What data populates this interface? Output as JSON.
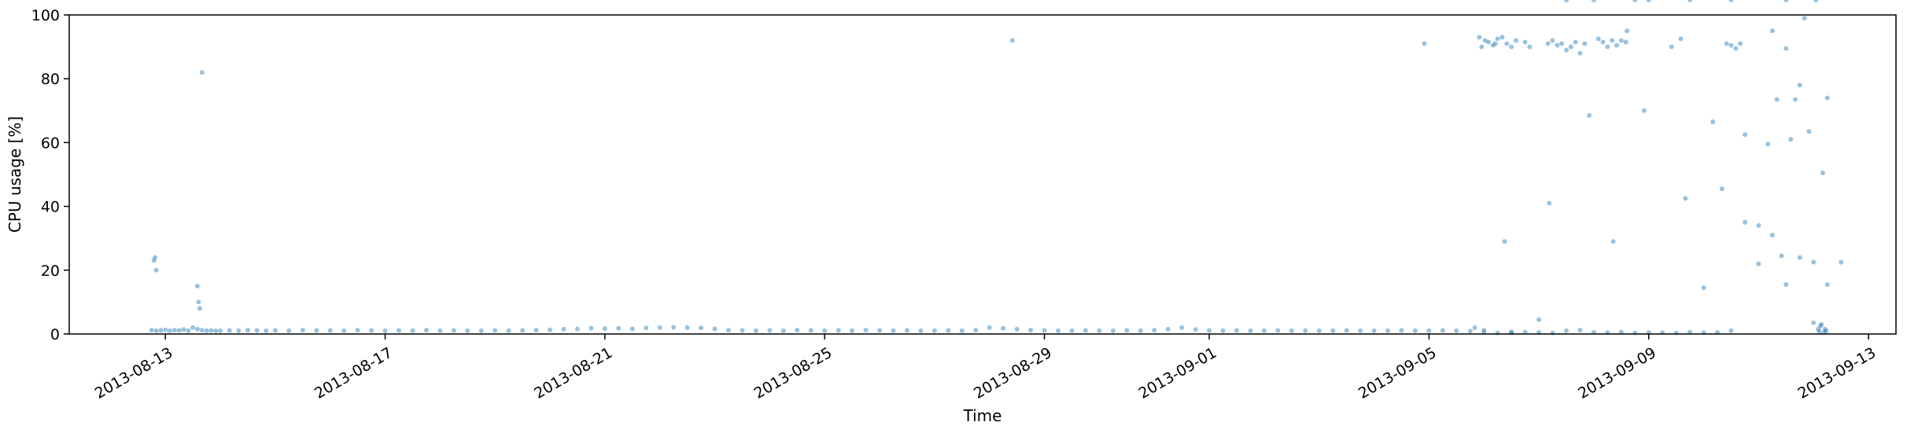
{
  "chart_data": {
    "type": "scatter",
    "xlabel": "Time",
    "ylabel": "CPU usage [%]",
    "ylim": [
      0,
      100
    ],
    "xlim": [
      "2013-08-11T06:00:00",
      "2013-09-13T12:00:00"
    ],
    "grid": false,
    "marker_color": "#1f77b4",
    "marker_alpha": 0.45,
    "x_ticks": [
      {
        "value": "2013-08-13",
        "label": "2013-08-13"
      },
      {
        "value": "2013-08-17",
        "label": "2013-08-17"
      },
      {
        "value": "2013-08-21",
        "label": "2013-08-21"
      },
      {
        "value": "2013-08-25",
        "label": "2013-08-25"
      },
      {
        "value": "2013-08-29",
        "label": "2013-08-29"
      },
      {
        "value": "2013-09-01",
        "label": "2013-09-01"
      },
      {
        "value": "2013-09-05",
        "label": "2013-09-05"
      },
      {
        "value": "2013-09-09",
        "label": "2013-09-09"
      },
      {
        "value": "2013-09-13",
        "label": "2013-09-13"
      }
    ],
    "y_ticks": [
      {
        "value": 0,
        "label": "0"
      },
      {
        "value": 20,
        "label": "20"
      },
      {
        "value": 40,
        "label": "40"
      },
      {
        "value": 60,
        "label": "60"
      },
      {
        "value": 80,
        "label": "80"
      },
      {
        "value": 100,
        "label": "100"
      }
    ],
    "series": [
      {
        "values_x": [
          "2013-08-12T18:00",
          "2013-08-12T20:00",
          "2013-08-12T22:00",
          "2013-08-13T00:00",
          "2013-08-13T02:00",
          "2013-08-13T04:00",
          "2013-08-13T06:00",
          "2013-08-13T08:00",
          "2013-08-13T10:00",
          "2013-08-13T12:00",
          "2013-08-13T14:00",
          "2013-08-13T16:00",
          "2013-08-13T18:00",
          "2013-08-13T20:00",
          "2013-08-13T22:00",
          "2013-08-14T00:00",
          "2013-08-14T04:00",
          "2013-08-14T08:00",
          "2013-08-14T12:00",
          "2013-08-14T16:00",
          "2013-08-14T20:00",
          "2013-08-15T00:00",
          "2013-08-15T06:00",
          "2013-08-15T12:00",
          "2013-08-15T18:00",
          "2013-08-16T00:00",
          "2013-08-16T06:00",
          "2013-08-16T12:00",
          "2013-08-16T18:00",
          "2013-08-17T00:00",
          "2013-08-17T06:00",
          "2013-08-17T12:00",
          "2013-08-17T18:00",
          "2013-08-18T00:00",
          "2013-08-18T06:00",
          "2013-08-18T12:00",
          "2013-08-18T18:00",
          "2013-08-19T00:00",
          "2013-08-19T06:00",
          "2013-08-19T12:00",
          "2013-08-19T18:00",
          "2013-08-20T00:00",
          "2013-08-20T06:00",
          "2013-08-20T12:00",
          "2013-08-20T18:00",
          "2013-08-21T00:00",
          "2013-08-21T06:00",
          "2013-08-21T12:00",
          "2013-08-21T18:00",
          "2013-08-22T00:00",
          "2013-08-22T06:00",
          "2013-08-22T12:00",
          "2013-08-22T18:00",
          "2013-08-23T00:00",
          "2013-08-23T06:00",
          "2013-08-23T12:00",
          "2013-08-23T18:00",
          "2013-08-24T00:00",
          "2013-08-24T06:00",
          "2013-08-24T12:00",
          "2013-08-24T18:00",
          "2013-08-25T00:00",
          "2013-08-25T06:00",
          "2013-08-25T12:00",
          "2013-08-25T18:00",
          "2013-08-26T00:00",
          "2013-08-26T06:00",
          "2013-08-26T12:00",
          "2013-08-26T18:00",
          "2013-08-27T00:00",
          "2013-08-27T06:00",
          "2013-08-27T12:00",
          "2013-08-27T18:00",
          "2013-08-28T00:00",
          "2013-08-28T06:00",
          "2013-08-28T12:00",
          "2013-08-28T18:00",
          "2013-08-29T00:00",
          "2013-08-29T06:00",
          "2013-08-29T12:00",
          "2013-08-29T18:00",
          "2013-08-30T00:00",
          "2013-08-30T06:00",
          "2013-08-30T12:00",
          "2013-08-30T18:00",
          "2013-08-31T00:00",
          "2013-08-31T06:00",
          "2013-08-31T12:00",
          "2013-08-31T18:00",
          "2013-09-01T00:00",
          "2013-09-01T06:00",
          "2013-09-01T12:00",
          "2013-09-01T18:00",
          "2013-09-02T00:00",
          "2013-09-02T06:00",
          "2013-09-02T12:00",
          "2013-09-02T18:00",
          "2013-09-03T00:00",
          "2013-09-03T06:00",
          "2013-09-03T12:00",
          "2013-09-03T18:00",
          "2013-09-04T00:00",
          "2013-09-04T06:00",
          "2013-09-04T12:00",
          "2013-09-04T18:00",
          "2013-09-05T00:00",
          "2013-09-05T06:00",
          "2013-09-05T12:00",
          "2013-09-05T18:00",
          "2013-09-06T00:00",
          "2013-09-06T06:00",
          "2013-09-06T12:00",
          "2013-09-06T18:00",
          "2013-09-07T00:00",
          "2013-09-07T06:00",
          "2013-09-07T12:00",
          "2013-09-07T18:00",
          "2013-09-08T00:00",
          "2013-09-08T06:00",
          "2013-09-08T12:00",
          "2013-09-08T18:00",
          "2013-09-09T00:00",
          "2013-09-09T06:00",
          "2013-09-09T12:00",
          "2013-09-09T18:00",
          "2013-09-10T00:00",
          "2013-09-10T06:00",
          "2013-09-10T12:00",
          "2013-09-10T18:00",
          "2013-09-11T00:00",
          "2013-09-11T06:00",
          "2013-09-11T12:00",
          "2013-09-11T18:00",
          "2013-09-12T00:00",
          "2013-09-12T06:00",
          "2013-09-12T12:00",
          "2013-08-12T19:00",
          "2013-08-12T19:30",
          "2013-08-12T20:00",
          "2013-08-13T14:00",
          "2013-08-13T14:30",
          "2013-08-13T15:00",
          "2013-08-13T16:00",
          "2013-08-28T10:00",
          "2013-09-04T22:00",
          "2013-09-05T22:00",
          "2013-09-05T23:00",
          "2013-09-06T00:30",
          "2013-09-06T02:00",
          "2013-09-06T04:00",
          "2013-09-06T05:00",
          "2013-09-06T06:00",
          "2013-09-06T08:00",
          "2013-09-06T10:00",
          "2013-09-06T12:00",
          "2013-09-06T14:00",
          "2013-09-06T18:00",
          "2013-09-06T20:00",
          "2013-09-07T04:00",
          "2013-09-07T06:00",
          "2013-09-07T08:00",
          "2013-09-07T10:00",
          "2013-09-07T12:00",
          "2013-09-07T14:00",
          "2013-09-07T16:00",
          "2013-09-07T18:00",
          "2013-09-07T20:00",
          "2013-09-08T02:00",
          "2013-09-08T04:00",
          "2013-09-08T06:00",
          "2013-09-08T08:00",
          "2013-09-08T10:00",
          "2013-09-08T12:00",
          "2013-09-08T14:00",
          "2013-09-09T10:00",
          "2013-09-09T14:00",
          "2013-09-10T10:00",
          "2013-09-10T12:00",
          "2013-09-10T14:00",
          "2013-09-10T16:00",
          "2013-09-11T06:00",
          "2013-09-11T08:00",
          "2013-09-11T10:00",
          "2013-09-11T12:00",
          "2013-09-11T14:00",
          "2013-09-11T16:00",
          "2013-09-11T18:00",
          "2013-09-12T04:00",
          "2013-09-12T06:00",
          "2013-09-06T09:00",
          "2013-09-07T04:30",
          "2013-09-07T22:00",
          "2013-09-08T08:30",
          "2013-09-08T14:30",
          "2013-09-08T22:00",
          "2013-09-09T16:00",
          "2013-09-10T00:00",
          "2013-09-10T04:00",
          "2013-09-10T08:00",
          "2013-09-10T18:00",
          "2013-09-11T00:00",
          "2013-09-11T04:00",
          "2013-09-11T20:00",
          "2013-09-11T22:00",
          "2013-09-12T00:00",
          "2013-09-12T02:00",
          "2013-09-12T02:30",
          "2013-09-12T03:00",
          "2013-09-12T03:30",
          "2013-09-12T04:30",
          "2013-09-12T05:00",
          "2013-09-12T05:30",
          "2013-09-05T20:00",
          "2013-09-06T00:00",
          "2013-09-06T12:00",
          "2013-09-07T00:00",
          "2013-09-07T12:00",
          "2013-09-08T00:00",
          "2013-09-08T18:00",
          "2013-09-09T00:00",
          "2013-09-09T18:00",
          "2013-09-10T12:00",
          "2013-09-11T12:00",
          "2013-09-12T01:00"
        ],
        "values_y": [
          1.2,
          1.0,
          1.1,
          1.3,
          1.0,
          1.2,
          1.1,
          1.4,
          1.0,
          2.0,
          1.5,
          1.2,
          1.0,
          1.1,
          1.0,
          1.0,
          1.1,
          1.0,
          1.2,
          1.1,
          1.0,
          1.1,
          1.0,
          1.2,
          1.1,
          1.1,
          1.0,
          1.2,
          1.1,
          1.0,
          1.1,
          1.0,
          1.2,
          1.0,
          1.1,
          1.0,
          1.0,
          1.1,
          1.0,
          1.1,
          1.2,
          1.3,
          1.5,
          1.6,
          1.8,
          1.7,
          1.8,
          1.6,
          1.9,
          2.0,
          2.1,
          2.0,
          1.9,
          1.6,
          1.2,
          1.1,
          1.0,
          1.1,
          1.0,
          1.2,
          1.1,
          1.0,
          1.1,
          1.0,
          1.2,
          1.1,
          1.0,
          1.1,
          1.0,
          1.0,
          1.1,
          1.0,
          1.2,
          2.0,
          1.8,
          1.5,
          1.2,
          1.1,
          1.0,
          1.0,
          1.1,
          1.0,
          1.0,
          1.1,
          1.0,
          1.2,
          1.5,
          2.0,
          1.4,
          1.1,
          1.0,
          1.1,
          1.0,
          1.0,
          1.1,
          1.0,
          1.0,
          1.0,
          1.0,
          1.1,
          1.0,
          1.0,
          1.0,
          1.1,
          1.0,
          1.0,
          1.1,
          1.0,
          0.9,
          0.5,
          0.3,
          0.4,
          0.6,
          0.5,
          0.3,
          1.0,
          1.2,
          0.5,
          0.4,
          0.6,
          0.3,
          0.5,
          0.4,
          0.3,
          0.6,
          0.4,
          0.5,
          1.0,
          62.5,
          34.0,
          31.0,
          89.5,
          78.0,
          22.5,
          15.5,
          22.5,
          23.0,
          24.0,
          20.0,
          15.0,
          10.0,
          8.0,
          82.0,
          92.0,
          91.0,
          93.0,
          90.0,
          92.0,
          91.5,
          90.5,
          91.0,
          92.5,
          93.0,
          91.0,
          90.0,
          92.0,
          91.5,
          90.0,
          91.0,
          92.0,
          90.5,
          91.0,
          89.0,
          90.0,
          91.5,
          88.0,
          91.0,
          92.5,
          91.5,
          90.0,
          92.0,
          90.5,
          92.0,
          91.5,
          90.0,
          92.5,
          91.0,
          90.5,
          89.5,
          91.0,
          95.0,
          73.5,
          24.5,
          15.5,
          61.0,
          73.5,
          24.0,
          50.5,
          74.0,
          29.0,
          41.0,
          68.5,
          29.0,
          95.0,
          70.0,
          42.5,
          14.5,
          66.5,
          45.5,
          35.0,
          22.0,
          59.5,
          99.0,
          63.5,
          3.5,
          1.5,
          0.8,
          2.5,
          3.0,
          0.5,
          1.5,
          0.9,
          2.0,
          1.2,
          0.7,
          4.5
        ]
      }
    ]
  }
}
